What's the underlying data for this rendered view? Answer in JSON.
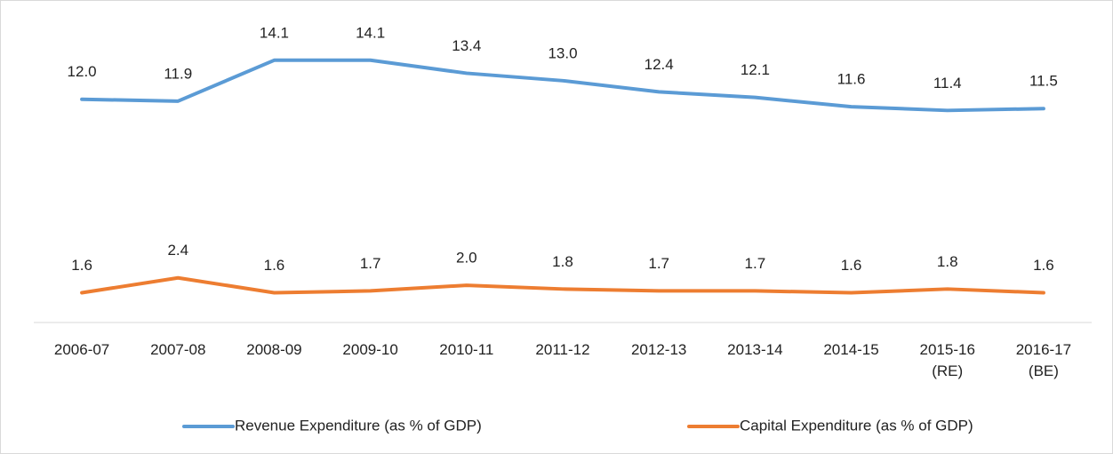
{
  "chart_data": {
    "type": "line",
    "categories": [
      "2006-07",
      "2007-08",
      "2008-09",
      "2009-10",
      "2010-11",
      "2011-12",
      "2012-13",
      "2013-14",
      "2014-15",
      "2015-16 (RE)",
      "2016-17 (BE)"
    ],
    "series": [
      {
        "name": "Revenue Expenditure (as % of GDP)",
        "color": "#5b9bd5",
        "values": [
          12.0,
          11.9,
          14.1,
          14.1,
          13.4,
          13.0,
          12.4,
          12.1,
          11.6,
          11.4,
          11.5
        ],
        "value_labels": [
          "12.0",
          "11.9",
          "14.1",
          "14.1",
          "13.4",
          "13.0",
          "12.4",
          "12.1",
          "11.6",
          "11.4",
          "11.5"
        ]
      },
      {
        "name": "Capital Expenditure (as % of GDP)",
        "color": "#ed7d31",
        "values": [
          1.6,
          2.4,
          1.6,
          1.7,
          2.0,
          1.8,
          1.7,
          1.7,
          1.6,
          1.8,
          1.6
        ],
        "value_labels": [
          "1.6",
          "2.4",
          "1.6",
          "1.7",
          "2.0",
          "1.8",
          "1.7",
          "1.7",
          "1.6",
          "1.8",
          "1.6"
        ]
      }
    ],
    "ylim": [
      0,
      16
    ],
    "legend": "bottom"
  }
}
